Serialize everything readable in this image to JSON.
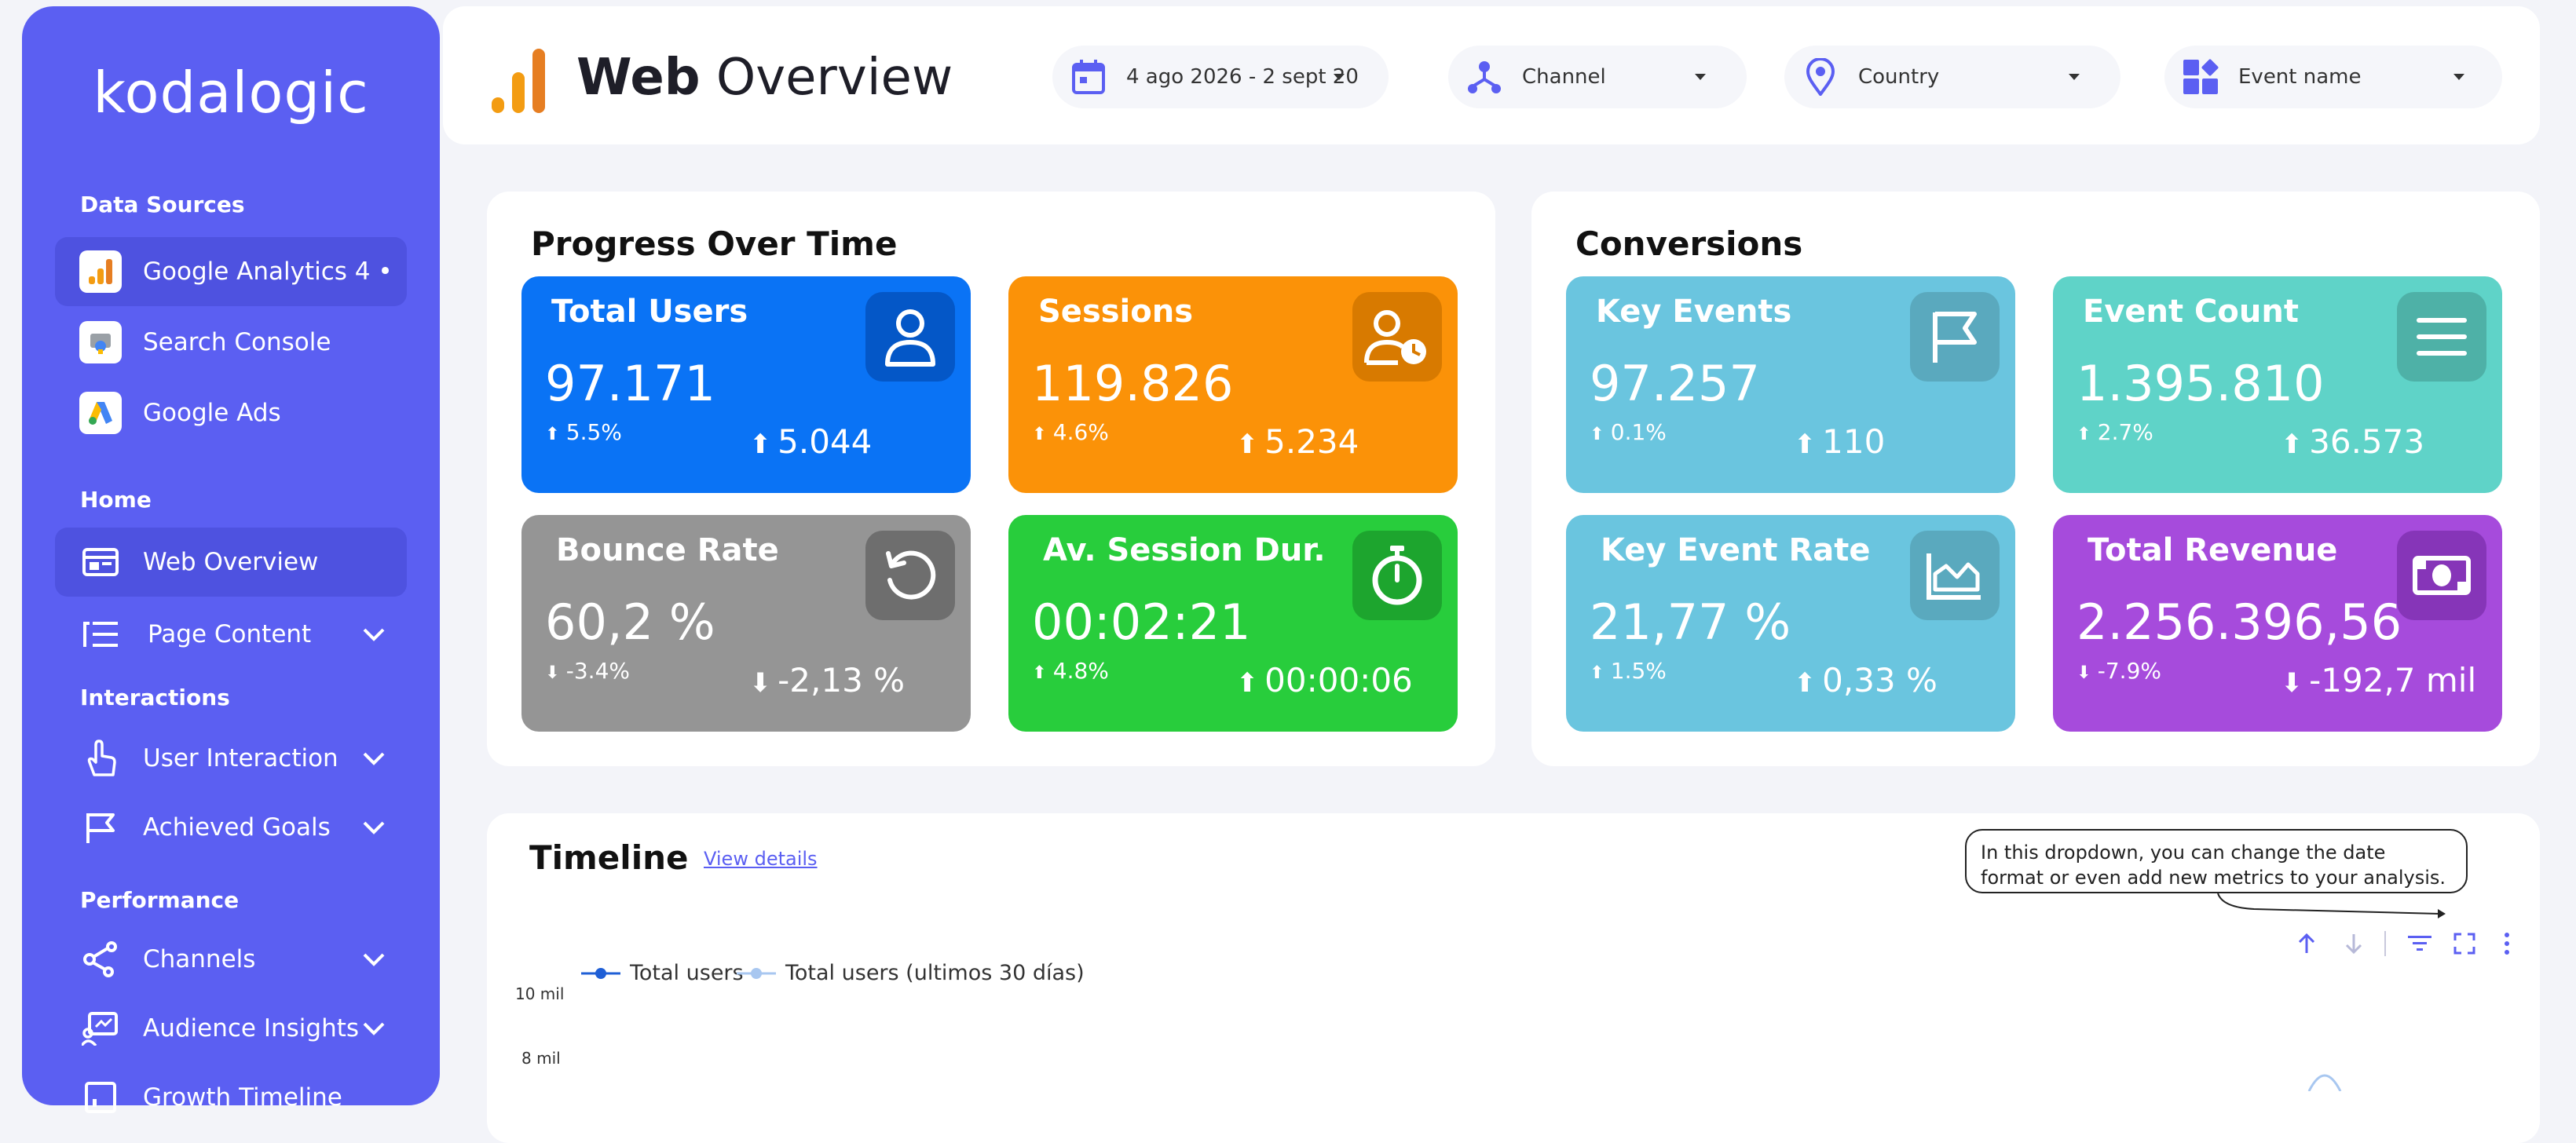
{
  "sidebar": {
    "logo": "kodalogic",
    "sections": {
      "data_sources": "Data Sources",
      "home": "Home",
      "interactions": "Interactions",
      "performance": "Performance"
    },
    "items": {
      "ga4": "Google Analytics 4 •",
      "search_console": "Search Console",
      "google_ads": "Google Ads",
      "web_overview": "Web Overview",
      "page_content": "Page Content",
      "user_interaction": "User Interaction",
      "achieved_goals": "Achieved Goals",
      "channels": "Channels",
      "audience_insights": "Audience Insights",
      "growth_timeline": "Growth Timeline"
    }
  },
  "header": {
    "title_bold": "Web",
    "title_rest": " Overview",
    "filters": {
      "date": "4 ago 2026 - 2 sept 20",
      "channel": "Channel",
      "country": "Country",
      "event": "Event name"
    }
  },
  "progress": {
    "title": "Progress Over Time",
    "cards": {
      "total_users": {
        "title": "Total Users",
        "value": "97.171",
        "pct": "5.5%",
        "delta": "5.044",
        "color": "#0a73f5"
      },
      "sessions": {
        "title": "Sessions",
        "value": "119.826",
        "pct": "4.6%",
        "delta": "5.234",
        "color": "#fb9208"
      },
      "bounce_rate": {
        "title": "Bounce Rate",
        "value": "60,2 %",
        "pct": "-3.4%",
        "delta": "-2,13 %",
        "color": "#959595"
      },
      "session_dur": {
        "title": "Av. Session Dur.",
        "value": "00:02:21",
        "pct": "4.8%",
        "delta": "00:00:06",
        "color": "#28cd3c"
      }
    }
  },
  "conversions": {
    "title": "Conversions",
    "cards": {
      "key_events": {
        "title": "Key Events",
        "value": "97.257",
        "pct": "0.1%",
        "delta": "110",
        "color": "#6ac5df"
      },
      "event_count": {
        "title": "Event Count",
        "value": "1.395.810",
        "pct": "2.7%",
        "delta": "36.573",
        "color": "#5fd3c8"
      },
      "key_event_rate": {
        "title": "Key Event Rate",
        "value": "21,77 %",
        "pct": "1.5%",
        "delta": "0,33 %",
        "color": "#6ac5df"
      },
      "total_revenue": {
        "title": "Total Revenue",
        "value": "2.256.396,56",
        "pct": "-7.9%",
        "delta": "-192,7 mil",
        "color": "#a64bdc"
      }
    }
  },
  "timeline": {
    "title": "Timeline",
    "link": "View details",
    "tooltip": "In this dropdown, you can change the date format or even add new metrics to your analysis.",
    "legend_1": "Total users",
    "legend_2": "Total users (ultimos 30 días)",
    "ytick_10": "10 mil",
    "ytick_8": "8 mil"
  }
}
